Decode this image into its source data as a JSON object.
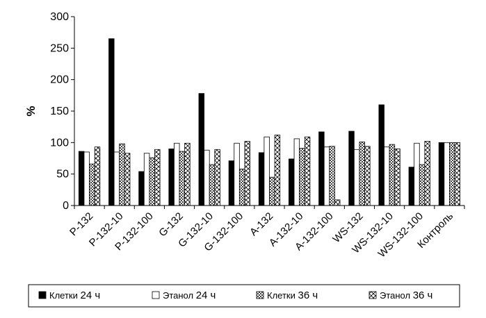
{
  "chart_data": {
    "type": "bar",
    "title": "",
    "xlabel": "",
    "ylabel": "%",
    "ylim": [
      0,
      300
    ],
    "yticks": [
      0,
      50,
      100,
      150,
      200,
      250,
      300
    ],
    "grid": false,
    "legend_position": "bottom",
    "categories": [
      "P-132",
      "P-132-10",
      "P-132-100",
      "G-132",
      "G-132-10",
      "G-132-100",
      "A-132",
      "A-132-10",
      "A-132-100",
      "WS-132",
      "WS-132-10",
      "WS-132-100",
      "Контроль"
    ],
    "series": [
      {
        "name": "Клетки",
        "unit": "24 ч",
        "pattern": "solid",
        "values": [
          86,
          265,
          54,
          90,
          178,
          71,
          84,
          74,
          117,
          118,
          160,
          61,
          100
        ]
      },
      {
        "name": "Этанол",
        "unit": "24 ч",
        "pattern": "white",
        "values": [
          85,
          85,
          83,
          99,
          88,
          99,
          109,
          106,
          93,
          89,
          93,
          99,
          100
        ]
      },
      {
        "name": "Клетки",
        "unit": "36 ч",
        "pattern": "checker",
        "values": [
          66,
          98,
          76,
          86,
          65,
          58,
          45,
          91,
          94,
          101,
          97,
          65,
          100
        ]
      },
      {
        "name": "Этанол",
        "unit": "36 ч",
        "pattern": "diagonal",
        "values": [
          93,
          83,
          89,
          99,
          89,
          102,
          112,
          109,
          9,
          94,
          90,
          102,
          100
        ]
      }
    ]
  }
}
